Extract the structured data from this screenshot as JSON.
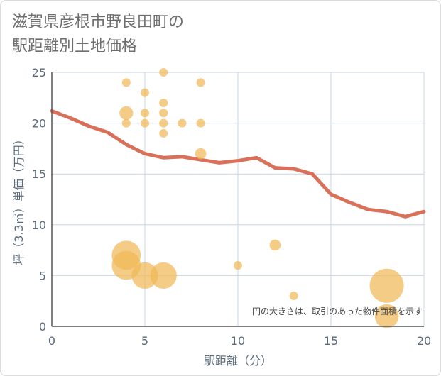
{
  "title_lines": [
    "滋賀県彦根市野良田町の",
    "駅距離別土地価格"
  ],
  "chart_data": {
    "type": "scatter",
    "title": "滋賀県彦根市野良田町の駅距離別土地価格",
    "xlabel": "駅距離（分）",
    "ylabel": "坪（3.3㎡）単価（万円）",
    "xlim": [
      0,
      20
    ],
    "ylim": [
      0,
      25
    ],
    "x_ticks": [
      0,
      5,
      10,
      15,
      20
    ],
    "y_ticks": [
      0,
      5,
      10,
      15,
      20,
      25
    ],
    "grid": true,
    "note": "円の大きさは、取引のあった物件面積を示す",
    "colors": {
      "bubble": "#f0b858",
      "trend": "#d9715a",
      "grid": "#c9d6e3",
      "axis": "#555555"
    },
    "bubbles": [
      {
        "x": 4,
        "y": 24,
        "size": 1
      },
      {
        "x": 6,
        "y": 25,
        "size": 1
      },
      {
        "x": 8,
        "y": 24,
        "size": 1
      },
      {
        "x": 5,
        "y": 23,
        "size": 1
      },
      {
        "x": 6,
        "y": 22,
        "size": 1
      },
      {
        "x": 4,
        "y": 21,
        "size": 2
      },
      {
        "x": 5,
        "y": 21,
        "size": 1
      },
      {
        "x": 6,
        "y": 21,
        "size": 1
      },
      {
        "x": 4,
        "y": 20,
        "size": 1
      },
      {
        "x": 5,
        "y": 20,
        "size": 1
      },
      {
        "x": 6,
        "y": 20,
        "size": 1
      },
      {
        "x": 7,
        "y": 20,
        "size": 1
      },
      {
        "x": 8,
        "y": 20,
        "size": 1
      },
      {
        "x": 6,
        "y": 19,
        "size": 1
      },
      {
        "x": 8,
        "y": 17,
        "size": 1.5
      },
      {
        "x": 4,
        "y": 7,
        "size": 5
      },
      {
        "x": 4,
        "y": 6,
        "size": 5
      },
      {
        "x": 5,
        "y": 5,
        "size": 4.5
      },
      {
        "x": 6,
        "y": 5,
        "size": 4.5
      },
      {
        "x": 10,
        "y": 6,
        "size": 1
      },
      {
        "x": 12,
        "y": 8,
        "size": 1.5
      },
      {
        "x": 13,
        "y": 3,
        "size": 1
      },
      {
        "x": 18,
        "y": 4,
        "size": 6
      },
      {
        "x": 18,
        "y": 1,
        "size": 4
      }
    ],
    "trend": {
      "x": [
        0,
        1,
        2,
        3,
        4,
        5,
        6,
        7,
        8,
        9,
        10,
        11,
        12,
        13,
        14,
        15,
        16,
        17,
        18,
        19,
        20
      ],
      "y": [
        21.2,
        20.5,
        19.7,
        19.1,
        17.9,
        17.0,
        16.6,
        16.7,
        16.4,
        16.1,
        16.3,
        16.6,
        15.6,
        15.5,
        15.0,
        13.0,
        12.2,
        11.5,
        11.3,
        10.8,
        11.3
      ]
    }
  }
}
